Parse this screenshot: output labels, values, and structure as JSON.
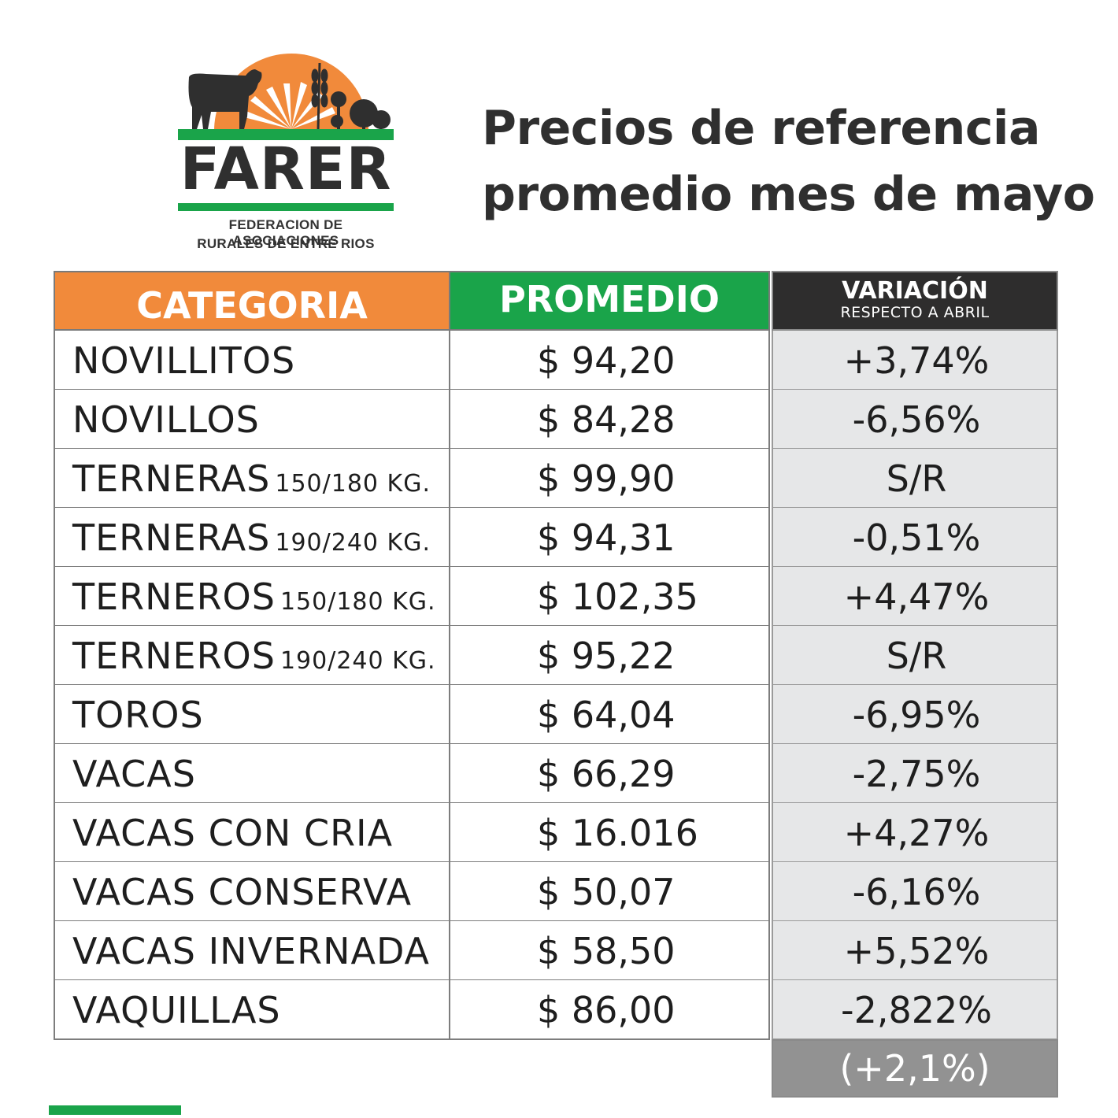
{
  "logo": {
    "wordmark": "FARER",
    "subtitle_line1": "FEDERACION DE ASOCIACIONES",
    "subtitle_line2": "RURALES DE ENTRE RIOS",
    "colors": {
      "sun": "#f18a3b",
      "green": "#1aa44a",
      "dark": "#2f2f2f"
    }
  },
  "title": {
    "line1": "Precios de referencia",
    "line2": "promedio mes de mayo"
  },
  "table": {
    "headers": {
      "categoria": "CATEGORIA",
      "promedio": "PROMEDIO",
      "variacion": "VARIACIÓN",
      "variacion_sub": "RESPECTO A ABRIL"
    },
    "header_colors": {
      "categoria": "#f18a3b",
      "promedio": "#1aa44a",
      "variacion": "#2e2d2d"
    },
    "rows": [
      {
        "categoria": "NOVILLITOS",
        "detalle": "",
        "promedio": "$ 94,20",
        "variacion": "+3,74%"
      },
      {
        "categoria": "NOVILLOS",
        "detalle": "",
        "promedio": "$ 84,28",
        "variacion": "-6,56%"
      },
      {
        "categoria": "TERNERAS",
        "detalle": "150/180 KG.",
        "promedio": "$ 99,90",
        "variacion": "S/R"
      },
      {
        "categoria": "TERNERAS",
        "detalle": "190/240 KG.",
        "promedio": "$ 94,31",
        "variacion": "-0,51%"
      },
      {
        "categoria": "TERNEROS",
        "detalle": "150/180 KG.",
        "promedio": "$ 102,35",
        "variacion": "+4,47%"
      },
      {
        "categoria": "TERNEROS",
        "detalle": "190/240 KG.",
        "promedio": "$ 95,22",
        "variacion": "S/R"
      },
      {
        "categoria": "TOROS",
        "detalle": "",
        "promedio": "$ 64,04",
        "variacion": "-6,95%"
      },
      {
        "categoria": "VACAS",
        "detalle": "",
        "promedio": "$ 66,29",
        "variacion": "-2,75%"
      },
      {
        "categoria": "VACAS CON CRIA",
        "detalle": "",
        "promedio": "$ 16.016",
        "variacion": "+4,27%"
      },
      {
        "categoria": "VACAS CONSERVA",
        "detalle": "",
        "promedio": "$ 50,07",
        "variacion": "-6,16%"
      },
      {
        "categoria": "VACAS INVERNADA",
        "detalle": "",
        "promedio": "$ 58,50",
        "variacion": "+5,52%"
      },
      {
        "categoria": "VAQUILLAS",
        "detalle": "",
        "promedio": "$ 86,00",
        "variacion": "-2,822%"
      }
    ],
    "total_variacion": "(+2,1%)"
  }
}
